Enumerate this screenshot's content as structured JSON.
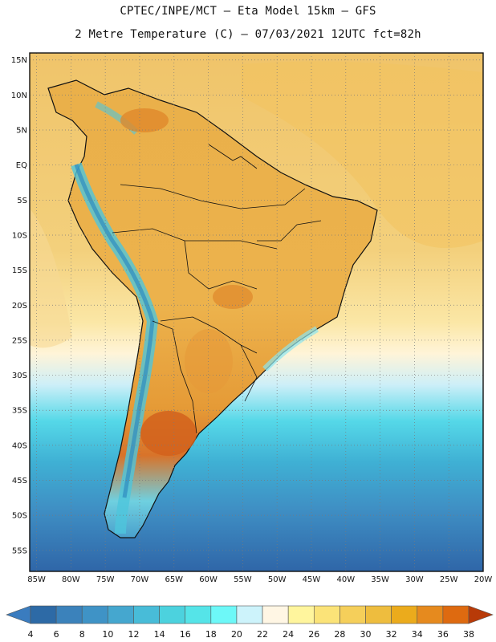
{
  "header": {
    "line1": "CPTEC/INPE/MCT –  Eta Model 15km – GFS",
    "line2": "2 Metre Temperature (C) – 07/03/2021 12UTC fct=82h"
  },
  "map": {
    "region": "South America",
    "lat_labels": [
      "15N",
      "10N",
      "5N",
      "EQ",
      "5S",
      "10S",
      "15S",
      "20S",
      "25S",
      "30S",
      "35S",
      "40S",
      "45S",
      "50S",
      "55S"
    ],
    "lon_labels": [
      "85W",
      "80W",
      "75W",
      "70W",
      "65W",
      "60W",
      "55W",
      "50W",
      "45W",
      "40W",
      "35W",
      "30W",
      "25W",
      "20W"
    ],
    "lat_range": [
      -58,
      16
    ],
    "lon_range": [
      -86,
      -20
    ]
  },
  "colorbar": {
    "ticks": [
      "4",
      "6",
      "8",
      "10",
      "12",
      "14",
      "16",
      "18",
      "20",
      "22",
      "24",
      "26",
      "28",
      "30",
      "32",
      "34",
      "36",
      "38"
    ],
    "colors": [
      "#2d6aa6",
      "#3b82bb",
      "#3f93c6",
      "#45a7cf",
      "#48bcd8",
      "#4cd2de",
      "#55e4e8",
      "#6df8f8",
      "#cdf3fb",
      "#fff6e4",
      "#fff59d",
      "#fbe378",
      "#f5cf5a",
      "#eebd3e",
      "#ebab1c",
      "#e68a1e",
      "#de6a10",
      "#c94305"
    ],
    "below_color": "#3a7cbf",
    "above_color": "#b83a08"
  }
}
